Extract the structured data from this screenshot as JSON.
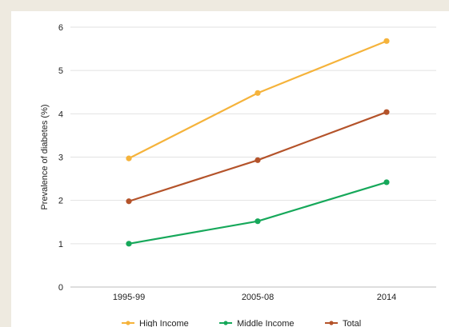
{
  "chart_data": {
    "type": "line",
    "title": "",
    "xlabel": "",
    "ylabel": "Prevalence of diabetes (%)",
    "categories": [
      "1995-99",
      "2005-08",
      "2014"
    ],
    "ylim": [
      0,
      6
    ],
    "yticks": [
      "0",
      "1",
      "2",
      "3",
      "4",
      "5",
      "6"
    ],
    "grid": true,
    "legend_position": "bottom",
    "series": [
      {
        "name": "High Income",
        "color": "#f5b33b",
        "values": [
          2.97,
          4.48,
          5.68
        ]
      },
      {
        "name": "Middle Income",
        "color": "#16a85a",
        "values": [
          1.0,
          1.52,
          2.42
        ]
      },
      {
        "name": "Total",
        "color": "#b4532a",
        "values": [
          1.98,
          2.93,
          4.04
        ]
      }
    ]
  }
}
